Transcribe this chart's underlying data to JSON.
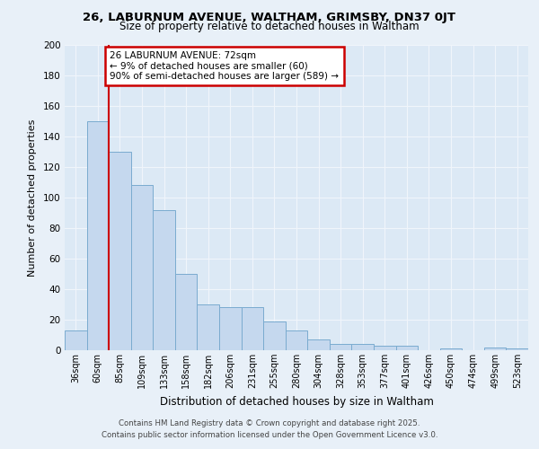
{
  "title1": "26, LABURNUM AVENUE, WALTHAM, GRIMSBY, DN37 0JT",
  "title2": "Size of property relative to detached houses in Waltham",
  "xlabel": "Distribution of detached houses by size in Waltham",
  "ylabel": "Number of detached properties",
  "categories": [
    "36sqm",
    "60sqm",
    "85sqm",
    "109sqm",
    "133sqm",
    "158sqm",
    "182sqm",
    "206sqm",
    "231sqm",
    "255sqm",
    "280sqm",
    "304sqm",
    "328sqm",
    "353sqm",
    "377sqm",
    "401sqm",
    "426sqm",
    "450sqm",
    "474sqm",
    "499sqm",
    "523sqm"
  ],
  "values": [
    13,
    150,
    130,
    108,
    92,
    50,
    30,
    28,
    28,
    19,
    13,
    7,
    4,
    4,
    3,
    3,
    0,
    1,
    0,
    2,
    1
  ],
  "bar_color": "#c5d8ee",
  "bar_edge_color": "#7aabcf",
  "plot_bg_color": "#dce9f5",
  "fig_bg_color": "#e8f0f8",
  "grid_color": "#f0f5fb",
  "vline_color": "#cc0000",
  "vline_x": 1.5,
  "annotation_text": "26 LABURNUM AVENUE: 72sqm\n← 9% of detached houses are smaller (60)\n90% of semi-detached houses are larger (589) →",
  "annotation_box_color": "#ffffff",
  "annotation_border_color": "#cc0000",
  "ylim": [
    0,
    200
  ],
  "yticks": [
    0,
    20,
    40,
    60,
    80,
    100,
    120,
    140,
    160,
    180,
    200
  ],
  "footer1": "Contains HM Land Registry data © Crown copyright and database right 2025.",
  "footer2": "Contains public sector information licensed under the Open Government Licence v3.0."
}
